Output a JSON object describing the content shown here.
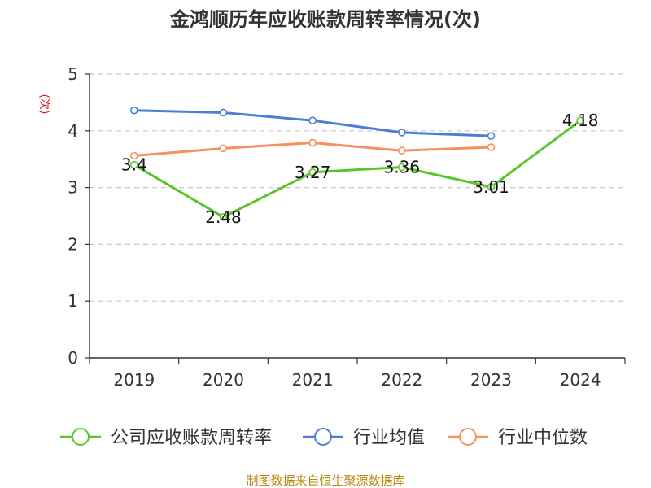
{
  "chart_data": {
    "type": "line",
    "title": "金鸿顺历年应收账款周转率情况(次)",
    "ylabel": "(次)",
    "categories": [
      "2019",
      "2020",
      "2021",
      "2022",
      "2023",
      "2024"
    ],
    "ylim": [
      0,
      5
    ],
    "yticks": [
      "0",
      "1",
      "2",
      "3",
      "4",
      "5"
    ],
    "grid": true,
    "legend_position": "bottom",
    "series": [
      {
        "name": "公司应收账款周转率",
        "values": [
          3.4,
          2.48,
          3.27,
          3.36,
          3.01,
          4.18
        ],
        "labels": [
          "3.4",
          "2.48",
          "3.27",
          "3.36",
          "3.01",
          "4.18"
        ],
        "color": "#5bc42a"
      },
      {
        "name": "行业均值",
        "values": [
          4.36,
          4.32,
          4.18,
          3.97,
          3.91,
          null
        ],
        "color": "#4a7fd6"
      },
      {
        "name": "行业中位数",
        "values": [
          3.56,
          3.69,
          3.79,
          3.65,
          3.71,
          null
        ],
        "color": "#f4915f"
      }
    ]
  },
  "source": "制图数据来自恒生聚源数据库"
}
